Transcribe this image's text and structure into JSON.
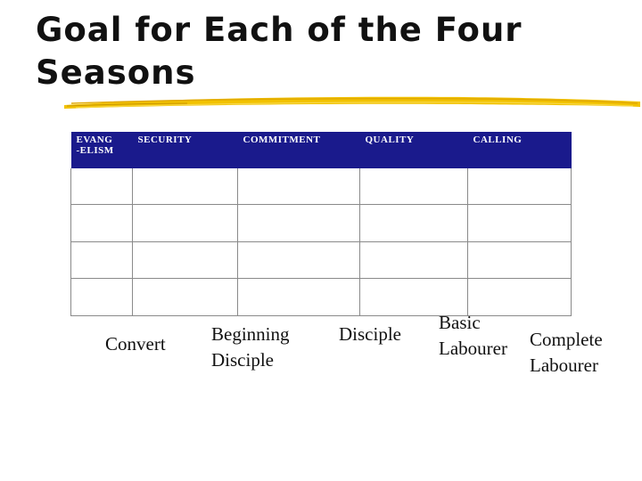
{
  "slide": {
    "title_line1": "Goal for Each of the Four",
    "title_line2": "Seasons",
    "accent_color": "#f2c200",
    "header_color": "#1a1a8c"
  },
  "table": {
    "headers": [
      "EVANG -ELISM",
      "SECURITY",
      "COMMITMENT",
      "QUALITY",
      "CALLING"
    ],
    "header_line1": "EVANG",
    "header_line2": "-ELISM",
    "rows": [
      [
        "",
        "",
        "",
        "",
        ""
      ],
      [
        "",
        "",
        "",
        "",
        ""
      ],
      [
        "",
        "",
        "",
        "",
        ""
      ],
      [
        "",
        "",
        "",
        "",
        ""
      ]
    ]
  },
  "goals": {
    "convert": "Convert",
    "beginning_disciple_1": "Beginning",
    "beginning_disciple_2": "Disciple",
    "disciple": "Disciple",
    "basic_labourer_1": "Basic",
    "basic_labourer_2": "Labourer",
    "complete_labourer_1": "Complete",
    "complete_labourer_2": "Labourer"
  }
}
